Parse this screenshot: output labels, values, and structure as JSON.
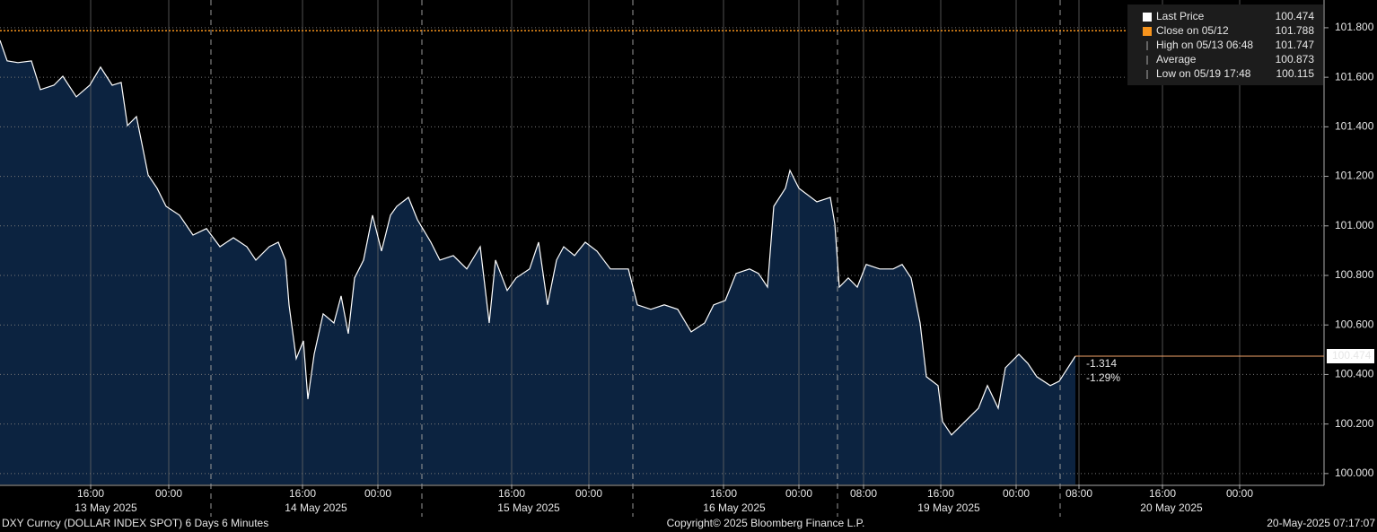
{
  "chart_data": {
    "type": "area",
    "series": [
      {
        "name": "Last Price",
        "color": "#ffffff",
        "fill": "#0c2340",
        "x": [
          0,
          0.8,
          2,
          3.5,
          4.5,
          6,
          7,
          8.5,
          10,
          11.2,
          12.5,
          13.5,
          14.2,
          15.2,
          15.8,
          16.5,
          17.5,
          18.5,
          20,
          21.5,
          23,
          24.5,
          26,
          27.5,
          28.5,
          30,
          31,
          31.8,
          32.2,
          33,
          33.8,
          34.3,
          35,
          36,
          37.2,
          38,
          38.8,
          39.5,
          40.5,
          41.5,
          42.5,
          43.5,
          44.2,
          45.5,
          46.5,
          48,
          49,
          50.5,
          52,
          53.5,
          54.5,
          55.2,
          56.5,
          57.5,
          59,
          60,
          61,
          62,
          62.8,
          64,
          65.2,
          66.5,
          68,
          70,
          71,
          72.5,
          74,
          75.5,
          77,
          78.5,
          79.5,
          80.8,
          82,
          83.5,
          84.5,
          85.5,
          86.2,
          87.5,
          88,
          89,
          91,
          92.5,
          93,
          93.5,
          94.5,
          95.5,
          96.5,
          98,
          99.5,
          100.5,
          101.5,
          102.5,
          103.2,
          104.5,
          105,
          106,
          107.5,
          109,
          110,
          111.2,
          112,
          113.5,
          114.5,
          115.5,
          117,
          118,
          119.8
        ],
        "values": [
          101.749,
          101.666,
          101.659,
          101.666,
          101.55,
          101.568,
          101.604,
          101.521,
          101.568,
          101.641,
          101.568,
          101.579,
          101.405,
          101.441,
          101.333,
          101.206,
          101.152,
          101.079,
          101.043,
          100.963,
          100.989,
          100.916,
          100.952,
          100.916,
          100.862,
          100.916,
          100.934,
          100.862,
          100.681,
          100.464,
          100.536,
          100.301,
          100.482,
          100.645,
          100.608,
          100.717,
          100.565,
          100.79,
          100.862,
          101.043,
          100.898,
          101.043,
          101.079,
          101.115,
          101.025,
          100.934,
          100.862,
          100.88,
          100.826,
          100.916,
          100.608,
          100.862,
          100.739,
          100.79,
          100.826,
          100.934,
          100.681,
          100.862,
          100.916,
          100.88,
          100.934,
          100.898,
          100.826,
          100.826,
          100.681,
          100.663,
          100.681,
          100.663,
          100.572,
          100.608,
          100.681,
          100.699,
          100.808,
          100.826,
          100.808,
          100.753,
          101.079,
          101.152,
          101.224,
          101.152,
          101.097,
          101.115,
          101.007,
          100.753,
          100.79,
          100.753,
          100.844,
          100.826,
          100.826,
          100.844,
          100.79,
          100.608,
          100.391,
          100.355,
          100.21,
          100.156,
          100.21,
          100.264,
          100.355,
          100.264,
          100.427,
          100.482,
          100.445,
          100.391,
          100.355,
          100.373,
          100.474
        ]
      }
    ],
    "xlim": [
      0,
      147.5
    ],
    "xticks": [
      {
        "value": 10.1,
        "label": "16:00"
      },
      {
        "value": 18.8,
        "label": "00:00"
      },
      {
        "value": 33.7,
        "label": "16:00"
      },
      {
        "value": 42.1,
        "label": "00:00"
      },
      {
        "value": 57.0,
        "label": "16:00"
      },
      {
        "value": 65.6,
        "label": "00:00"
      },
      {
        "value": 80.6,
        "label": "16:00"
      },
      {
        "value": 89.0,
        "label": "00:00"
      },
      {
        "value": 96.2,
        "label": "08:00"
      },
      {
        "value": 104.8,
        "label": "16:00"
      },
      {
        "value": 113.2,
        "label": "00:00"
      },
      {
        "value": 120.2,
        "label": "08:00"
      },
      {
        "value": 129.5,
        "label": "16:00"
      },
      {
        "value": 138.1,
        "label": "00:00"
      }
    ],
    "day_labels": [
      {
        "value": 11.8,
        "label": "13 May 2025"
      },
      {
        "value": 35.2,
        "label": "14 May 2025"
      },
      {
        "value": 58.9,
        "label": "15 May 2025"
      },
      {
        "value": 81.8,
        "label": "16 May 2025"
      },
      {
        "value": 105.7,
        "label": "19 May 2025"
      },
      {
        "value": 130.5,
        "label": "20 May 2025"
      }
    ],
    "session_breaks": [
      23.5,
      47.0,
      70.5,
      93.3,
      118.1
    ],
    "ylim": [
      99.956,
      101.912
    ],
    "yticks": [
      {
        "value": 100.0,
        "label": "100.000"
      },
      {
        "value": 100.2,
        "label": "100.200"
      },
      {
        "value": 100.4,
        "label": "100.400"
      },
      {
        "value": 100.6,
        "label": "100.600"
      },
      {
        "value": 100.8,
        "label": "100.800"
      },
      {
        "value": 101.0,
        "label": "101.000"
      },
      {
        "value": 101.2,
        "label": "101.200"
      },
      {
        "value": 101.4,
        "label": "101.400"
      },
      {
        "value": 101.6,
        "label": "101.600"
      },
      {
        "value": 101.8,
        "label": "101.800"
      }
    ],
    "grid": true,
    "legend": [
      {
        "name": "Last Price",
        "value": 100.474
      },
      {
        "name": "Close on 05/12",
        "value": 101.788
      },
      {
        "name": "High on 05/13 06:48",
        "value": 101.747
      },
      {
        "name": "Average",
        "value": 100.873
      },
      {
        "name": "Low on 05/19 17:48",
        "value": 100.115
      }
    ],
    "close_color": "#f7941d",
    "change_labels": [
      "-1.314",
      "-1.29%"
    ],
    "footer": {
      "left": "DXY Curncy (DOLLAR INDEX SPOT) 6 Days 6 Minutes",
      "center": "Copyright© 2025 Bloomberg Finance L.P.",
      "right": "20-May-2025 07:17:07"
    }
  }
}
